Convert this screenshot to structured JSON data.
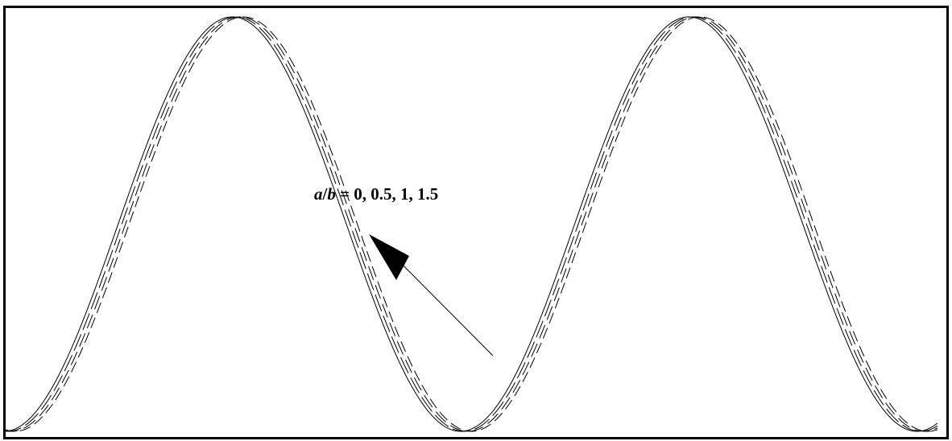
{
  "chart_data": {
    "type": "line",
    "title": "",
    "xlabel": "",
    "ylabel": "",
    "grid": false,
    "axes_visible": false,
    "frame": "box",
    "x_range_periods": [
      -0.25,
      1.795
    ],
    "y_range": [
      -1,
      1
    ],
    "annotation": {
      "var_a": "a",
      "slash": "/",
      "var_b": "b",
      "rest": " = 0, 0.5, 1, 1.5"
    },
    "series": [
      {
        "param": 0,
        "phase_shift_periods": 0.0,
        "style": "solid",
        "color": "#000000"
      },
      {
        "param": 0.5,
        "phase_shift_periods": 0.008,
        "style": "dashed",
        "color": "#000000"
      },
      {
        "param": 1,
        "phase_shift_periods": 0.016,
        "style": "dashed",
        "color": "#000000"
      },
      {
        "param": 1.5,
        "phase_shift_periods": 0.024,
        "style": "dashed",
        "color": "#000000"
      }
    ]
  }
}
